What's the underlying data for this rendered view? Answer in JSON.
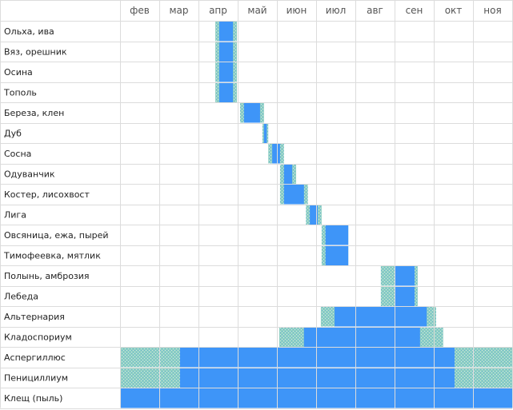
{
  "chart_data": {
    "type": "gantt",
    "title": "",
    "months": [
      "фев",
      "мар",
      "апр",
      "май",
      "июн",
      "июл",
      "авг",
      "сен",
      "окт",
      "ноя"
    ],
    "colors": {
      "peak": "#3e95f8",
      "partial": "#8fcfc2",
      "grid": "#dcdcdc"
    },
    "legend": "none",
    "grid": true,
    "x_unit": "month index (0 = start of фев, 10 = end of ноя)",
    "rows": [
      {
        "label": "Ольха, ива",
        "peak": [
          2.53,
          2.88
        ],
        "partial": [
          2.43,
          2.98
        ]
      },
      {
        "label": "Вяз, орешник",
        "peak": [
          2.53,
          2.88
        ],
        "partial": [
          2.43,
          2.98
        ]
      },
      {
        "label": "Осина",
        "peak": [
          2.53,
          2.88
        ],
        "partial": [
          2.43,
          2.98
        ]
      },
      {
        "label": "Тополь",
        "peak": [
          2.53,
          2.88
        ],
        "partial": [
          2.43,
          2.98
        ]
      },
      {
        "label": "Береза, клен",
        "peak": [
          3.16,
          3.57
        ],
        "partial": [
          3.06,
          3.67
        ]
      },
      {
        "label": "Дуб",
        "peak": [
          3.67,
          3.74
        ],
        "partial": [
          3.63,
          3.78
        ]
      },
      {
        "label": "Сосна",
        "peak": [
          3.88,
          4.08
        ],
        "partial": [
          3.78,
          4.18
        ]
      },
      {
        "label": "Одуванчик",
        "peak": [
          4.18,
          4.39
        ],
        "partial": [
          4.08,
          4.49
        ]
      },
      {
        "label": "Костер, лисохвост",
        "peak": [
          4.18,
          4.69
        ],
        "partial": [
          4.08,
          4.79
        ]
      },
      {
        "label": "Лига",
        "peak": [
          4.84,
          5.04
        ],
        "partial": [
          4.74,
          5.14
        ]
      },
      {
        "label": "Овсяница, ежа, пырей",
        "peak": [
          5.24,
          5.82
        ],
        "partial": [
          5.14,
          5.82
        ]
      },
      {
        "label": "Тимофеевка, мятлик",
        "peak": [
          5.24,
          5.82
        ],
        "partial": [
          5.14,
          5.82
        ]
      },
      {
        "label": "Полынь, амброзия",
        "peak": [
          7.0,
          7.51
        ],
        "partial": [
          6.65,
          7.59
        ]
      },
      {
        "label": "Лебеда",
        "peak": [
          7.0,
          7.51
        ],
        "partial": [
          6.65,
          7.59
        ]
      },
      {
        "label": "Альтернария",
        "peak": [
          5.47,
          7.82
        ],
        "partial": [
          5.12,
          8.06
        ]
      },
      {
        "label": "Кладоспориум",
        "peak": [
          4.69,
          7.65
        ],
        "partial": [
          4.06,
          8.24
        ]
      },
      {
        "label": "Аспергиллюс",
        "peak": [
          1.53,
          8.53
        ],
        "partial": [
          0.0,
          10.0
        ]
      },
      {
        "label": "Пенициллиум",
        "peak": [
          1.53,
          8.53
        ],
        "partial": [
          0.0,
          10.0
        ]
      },
      {
        "label": "Клещ (пыль)",
        "peak": [
          0.0,
          10.0
        ],
        "partial": [
          0.0,
          10.0
        ]
      }
    ]
  }
}
